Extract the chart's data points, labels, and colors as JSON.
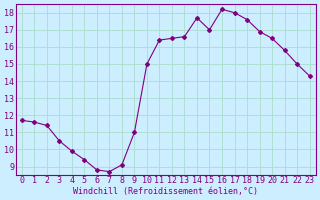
{
  "x": [
    0,
    1,
    2,
    3,
    4,
    5,
    6,
    7,
    8,
    9,
    10,
    11,
    12,
    13,
    14,
    15,
    16,
    17,
    18,
    19,
    20,
    21,
    22,
    23
  ],
  "y": [
    11.7,
    11.6,
    11.4,
    10.5,
    9.9,
    9.4,
    8.8,
    8.7,
    9.1,
    11.0,
    15.0,
    16.4,
    16.5,
    16.6,
    17.7,
    17.0,
    18.2,
    18.0,
    17.6,
    16.9,
    16.5,
    15.8,
    15.0,
    14.3
  ],
  "line_color": "#800080",
  "marker": "D",
  "marker_size": 2,
  "bg_color": "#cceeff",
  "grid_color": "#aaddcc",
  "xlabel": "Windchill (Refroidissement éolien,°C)",
  "axis_color": "#800080",
  "xlim": [
    -0.5,
    23.5
  ],
  "ylim": [
    8.5,
    18.5
  ],
  "yticks": [
    9,
    10,
    11,
    12,
    13,
    14,
    15,
    16,
    17,
    18
  ],
  "xticks": [
    0,
    1,
    2,
    3,
    4,
    5,
    6,
    7,
    8,
    9,
    10,
    11,
    12,
    13,
    14,
    15,
    16,
    17,
    18,
    19,
    20,
    21,
    22,
    23
  ],
  "label_fontsize": 6.0,
  "tick_fontsize": 6.0
}
